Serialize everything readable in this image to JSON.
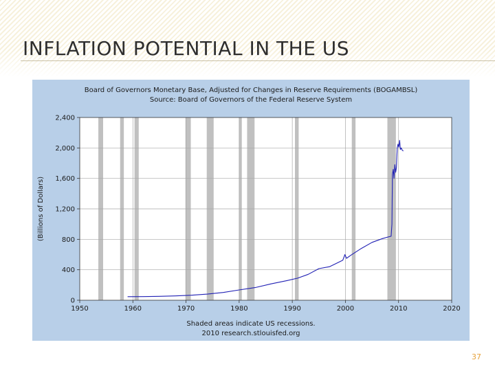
{
  "slide": {
    "title": "INFLATION POTENTIAL IN THE US",
    "page_number": "37"
  },
  "chart_data": {
    "type": "line",
    "title": "Board of Governors Monetary Base, Adjusted for Changes in Reserve Requirements (BOGAMBSL)",
    "subtitle": "Source: Board of Governors of the Federal Reserve System",
    "ylabel": "(Billions of Dollars)",
    "xlabel": "",
    "footer": [
      "Shaded areas indicate US recessions.",
      "2010 research.stlouisfed.org"
    ],
    "xlim": [
      1950,
      2020
    ],
    "ylim": [
      0,
      2400
    ],
    "xticks": [
      "1950",
      "1960",
      "1970",
      "1980",
      "1990",
      "2000",
      "2010",
      "2020"
    ],
    "yticks": [
      "0",
      "400",
      "800",
      "1,200",
      "1,600",
      "2,000",
      "2,400"
    ],
    "grid": true,
    "colors": {
      "line": "#1f1fb4",
      "recession": "#c0c0c0",
      "plot_bg": "#ffffff",
      "panel_bg": "#b8cfe8"
    },
    "recessions": [
      [
        1953.5,
        1954.4
      ],
      [
        1957.6,
        1958.3
      ],
      [
        1960.3,
        1961.1
      ],
      [
        1969.9,
        1970.9
      ],
      [
        1973.9,
        1975.2
      ],
      [
        1980.0,
        1980.5
      ],
      [
        1981.5,
        1982.9
      ],
      [
        1990.5,
        1991.2
      ],
      [
        2001.2,
        2001.9
      ],
      [
        2007.9,
        2009.5
      ]
    ],
    "series": [
      {
        "x": [
          1959.0,
          1962,
          1965,
          1968,
          1971,
          1974,
          1977,
          1980,
          1983,
          1986,
          1989,
          1991,
          1993,
          1995,
          1997,
          1999.5,
          1999.9,
          2000.2,
          2001,
          2003,
          2005,
          2007,
          2008.0,
          2008.6,
          2008.75,
          2008.85,
          2009.0,
          2009.15,
          2009.3,
          2009.45,
          2009.6,
          2009.75,
          2009.9,
          2010.05,
          2010.2,
          2010.35,
          2010.5,
          2010.7,
          2010.9
        ],
        "y": [
          47,
          48,
          51,
          57,
          66,
          80,
          102,
          135,
          166,
          215,
          258,
          290,
          340,
          415,
          440,
          525,
          600,
          550,
          590,
          680,
          760,
          810,
          830,
          840,
          1000,
          1650,
          1720,
          1600,
          1780,
          1680,
          1740,
          2000,
          2050,
          2010,
          2100,
          1980,
          2000,
          1970,
          1960
        ]
      }
    ]
  }
}
